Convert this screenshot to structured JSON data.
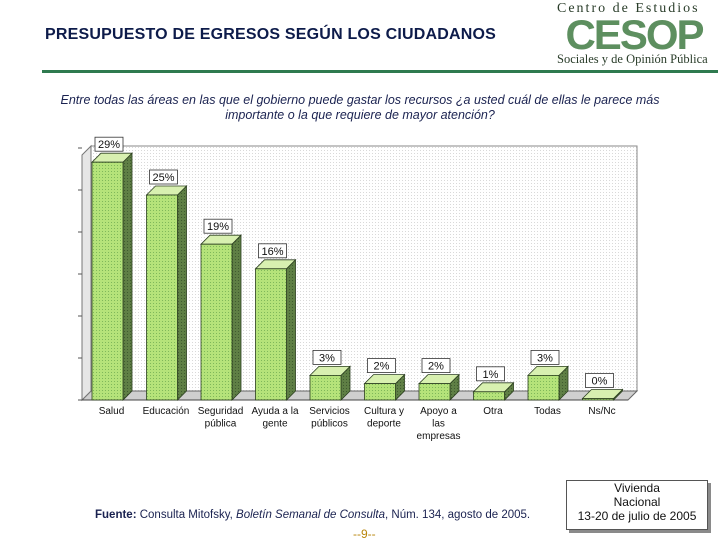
{
  "header": {
    "title": "PRESUPUESTO DE EGRESOS SEGÚN LOS CIUDADANOS",
    "logo": {
      "top_text": "Centro de Estudios",
      "mark_text": "CESOP",
      "bottom_text": "Sociales y de Opinión Pública"
    }
  },
  "question": "Entre todas las áreas en las que el gobierno puede gastar los recursos ¿a usted cuál de ellas le parece más importante o la que requiere de mayor atención?",
  "chart_data": {
    "type": "bar",
    "categories": [
      [
        "Salud"
      ],
      [
        "Educación"
      ],
      [
        "Seguridad",
        "pública"
      ],
      [
        "Ayuda a la",
        "gente"
      ],
      [
        "Servicios",
        "públicos"
      ],
      [
        "Cultura y",
        "deporte"
      ],
      [
        "Apoyo a",
        "las",
        "empresas"
      ],
      [
        "Otra"
      ],
      [
        "Todas"
      ],
      [
        "Ns/Nc"
      ]
    ],
    "values": [
      29,
      25,
      19,
      16,
      3,
      2,
      2,
      1,
      3,
      0
    ],
    "labels": [
      "29%",
      "25%",
      "19%",
      "16%",
      "3%",
      "2%",
      "2%",
      "1%",
      "3%",
      "0%"
    ],
    "ylim": [
      0,
      30
    ],
    "grid": false,
    "style": "3d",
    "bar_color": "#b5e37a",
    "title": "",
    "xlabel": "",
    "ylabel": ""
  },
  "footer": {
    "source_label": "Fuente:",
    "source_text_1": " Consulta Mitofsky, ",
    "source_italic": "Boletín Semanal de Consulta",
    "source_text_2": ", Núm. 134, agosto de 2005.",
    "page_number": "--9--",
    "survey": [
      "Vivienda",
      "Nacional",
      "13-20 de julio de 2005"
    ]
  }
}
